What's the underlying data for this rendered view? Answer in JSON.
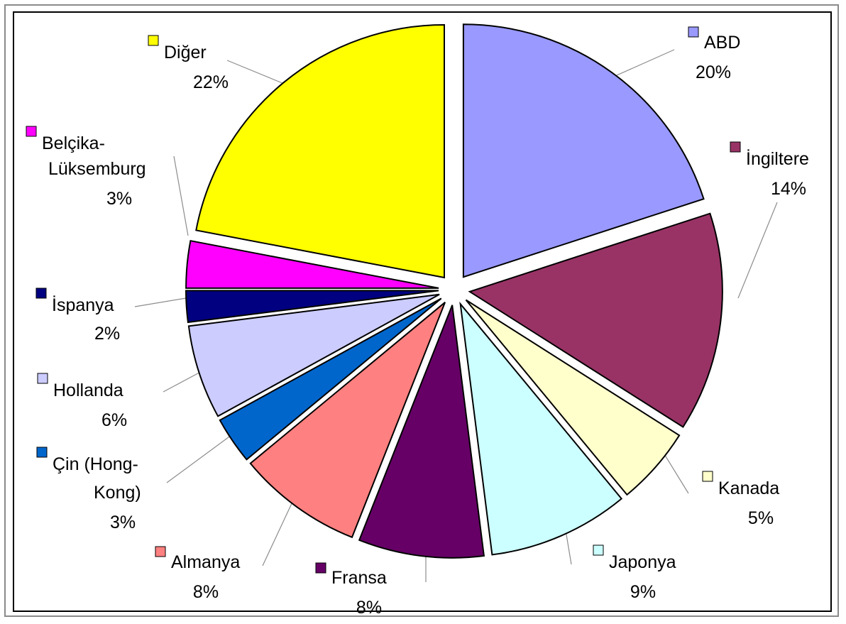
{
  "chart_data": {
    "type": "pie",
    "title": "",
    "exploded": true,
    "start_angle_deg": 0,
    "direction": "clockwise",
    "slices": [
      {
        "label": [
          "ABD"
        ],
        "value": 20,
        "value_text": "20%",
        "color": "#9999ff"
      },
      {
        "label": [
          "İngiltere"
        ],
        "value": 14,
        "value_text": "14%",
        "color": "#993366"
      },
      {
        "label": [
          "Kanada"
        ],
        "value": 5,
        "value_text": "5%",
        "color": "#ffffcc"
      },
      {
        "label": [
          "Japonya"
        ],
        "value": 9,
        "value_text": "9%",
        "color": "#ccffff"
      },
      {
        "label": [
          "Fransa"
        ],
        "value": 8,
        "value_text": "8%",
        "color": "#660066"
      },
      {
        "label": [
          "Almanya"
        ],
        "value": 8,
        "value_text": "8%",
        "color": "#ff8080"
      },
      {
        "label": [
          "Çin (Hong-",
          "Kong)"
        ],
        "value": 3,
        "value_text": "3%",
        "color": "#0066cc"
      },
      {
        "label": [
          "Hollanda"
        ],
        "value": 6,
        "value_text": "6%",
        "color": "#ccccff"
      },
      {
        "label": [
          "İspanya"
        ],
        "value": 2,
        "value_text": "2%",
        "color": "#000080"
      },
      {
        "label": [
          "Belçika-",
          "Lüksemburg"
        ],
        "value": 3,
        "value_text": "3%",
        "color": "#ff00ff"
      },
      {
        "label": [
          "Diğer"
        ],
        "value": 22,
        "value_text": "22%",
        "color": "#ffff00"
      }
    ]
  }
}
